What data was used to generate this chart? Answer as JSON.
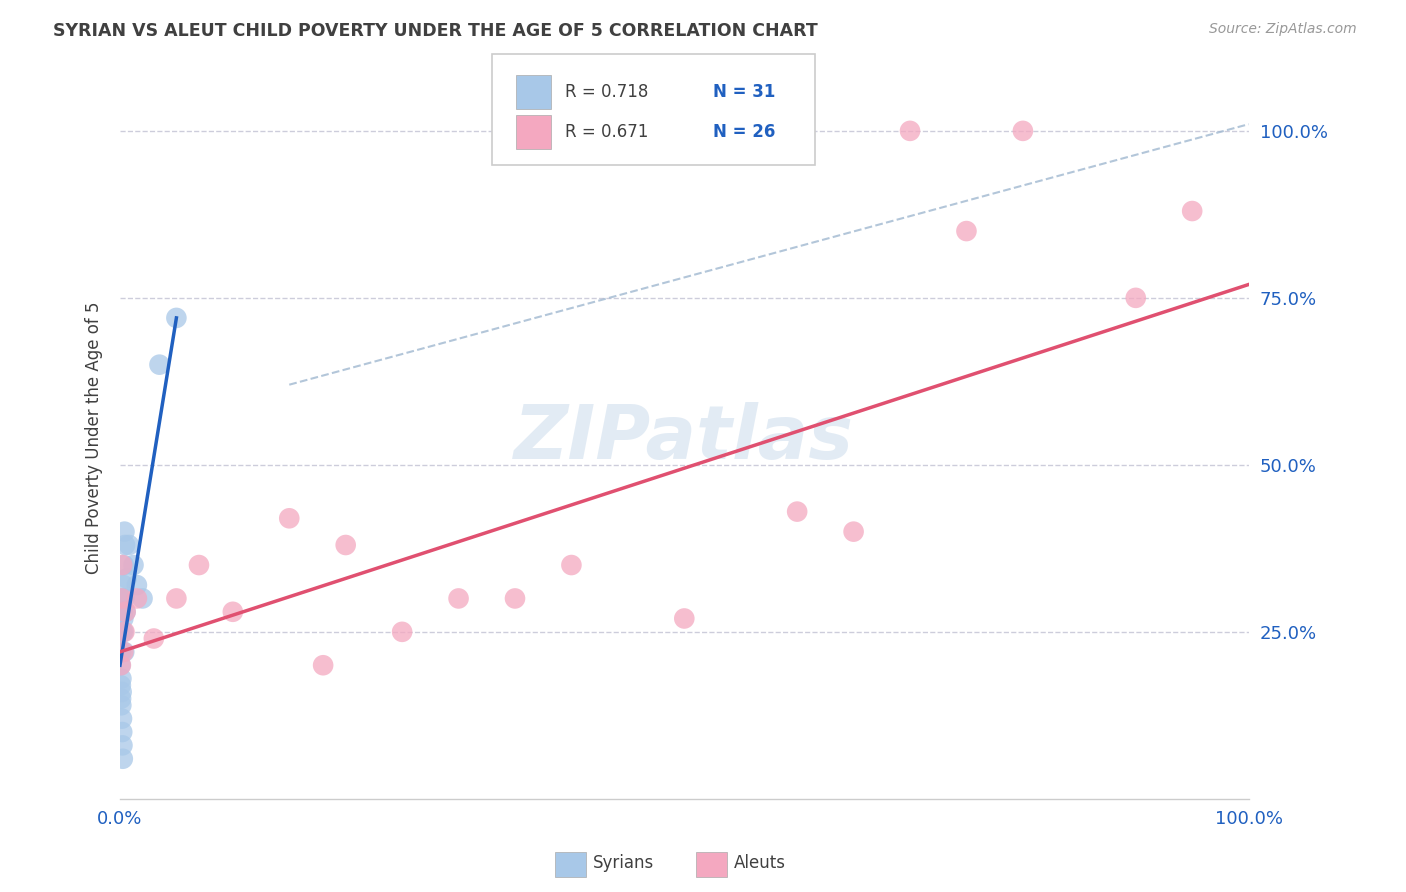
{
  "title": "SYRIAN VS ALEUT CHILD POVERTY UNDER THE AGE OF 5 CORRELATION CHART",
  "source": "Source: ZipAtlas.com",
  "ylabel_label": "Child Poverty Under the Age of 5",
  "watermark": "ZIPatlas",
  "syrians_color": "#a8c8e8",
  "aleuts_color": "#f4a8c0",
  "syrians_line_color": "#2060c0",
  "aleuts_line_color": "#e05070",
  "dashed_line_color": "#a0b8d0",
  "r_n_color": "#2060c0",
  "text_color": "#404040",
  "background_color": "#ffffff",
  "grid_color": "#c8c8d8",
  "syrians_r": 0.718,
  "syrians_n": 31,
  "aleuts_r": 0.671,
  "aleuts_n": 26,
  "syrians_x": [
    0.05,
    0.08,
    0.1,
    0.1,
    0.12,
    0.13,
    0.15,
    0.18,
    0.2,
    0.2,
    0.22,
    0.25,
    0.25,
    0.28,
    0.3,
    0.3,
    0.32,
    0.35,
    0.35,
    0.38,
    0.4,
    0.4,
    0.45,
    0.5,
    0.6,
    0.8,
    1.2,
    1.5,
    2.0,
    3.5,
    5.0
  ],
  "syrians_y": [
    20,
    17,
    15,
    22,
    14,
    18,
    16,
    12,
    10,
    25,
    8,
    6,
    28,
    30,
    27,
    32,
    25,
    30,
    35,
    22,
    30,
    40,
    38,
    28,
    33,
    38,
    35,
    32,
    30,
    65,
    72
  ],
  "aleuts_x": [
    0.08,
    0.15,
    0.2,
    0.3,
    0.4,
    0.5,
    1.5,
    3.0,
    5.0,
    7.0,
    10.0,
    15.0,
    18.0,
    20.0,
    25.0,
    30.0,
    35.0,
    40.0,
    50.0,
    60.0,
    65.0,
    70.0,
    75.0,
    80.0,
    90.0,
    95.0
  ],
  "aleuts_y": [
    20,
    30,
    35,
    22,
    25,
    28,
    30,
    24,
    30,
    35,
    28,
    42,
    20,
    38,
    25,
    30,
    30,
    35,
    27,
    43,
    40,
    100,
    85,
    100,
    75,
    88
  ],
  "blue_line_x": [
    0.0,
    5.0
  ],
  "blue_line_y": [
    20.0,
    72.0
  ],
  "pink_line_x": [
    0.0,
    100.0
  ],
  "pink_line_y": [
    22.0,
    77.0
  ],
  "dash_line_x": [
    15.0,
    100.0
  ],
  "dash_line_y": [
    62.0,
    101.0
  ],
  "xlim": [
    0,
    100
  ],
  "ylim": [
    0,
    108
  ],
  "yticks": [
    25,
    50,
    75,
    100
  ],
  "xticks": [
    0,
    100
  ]
}
